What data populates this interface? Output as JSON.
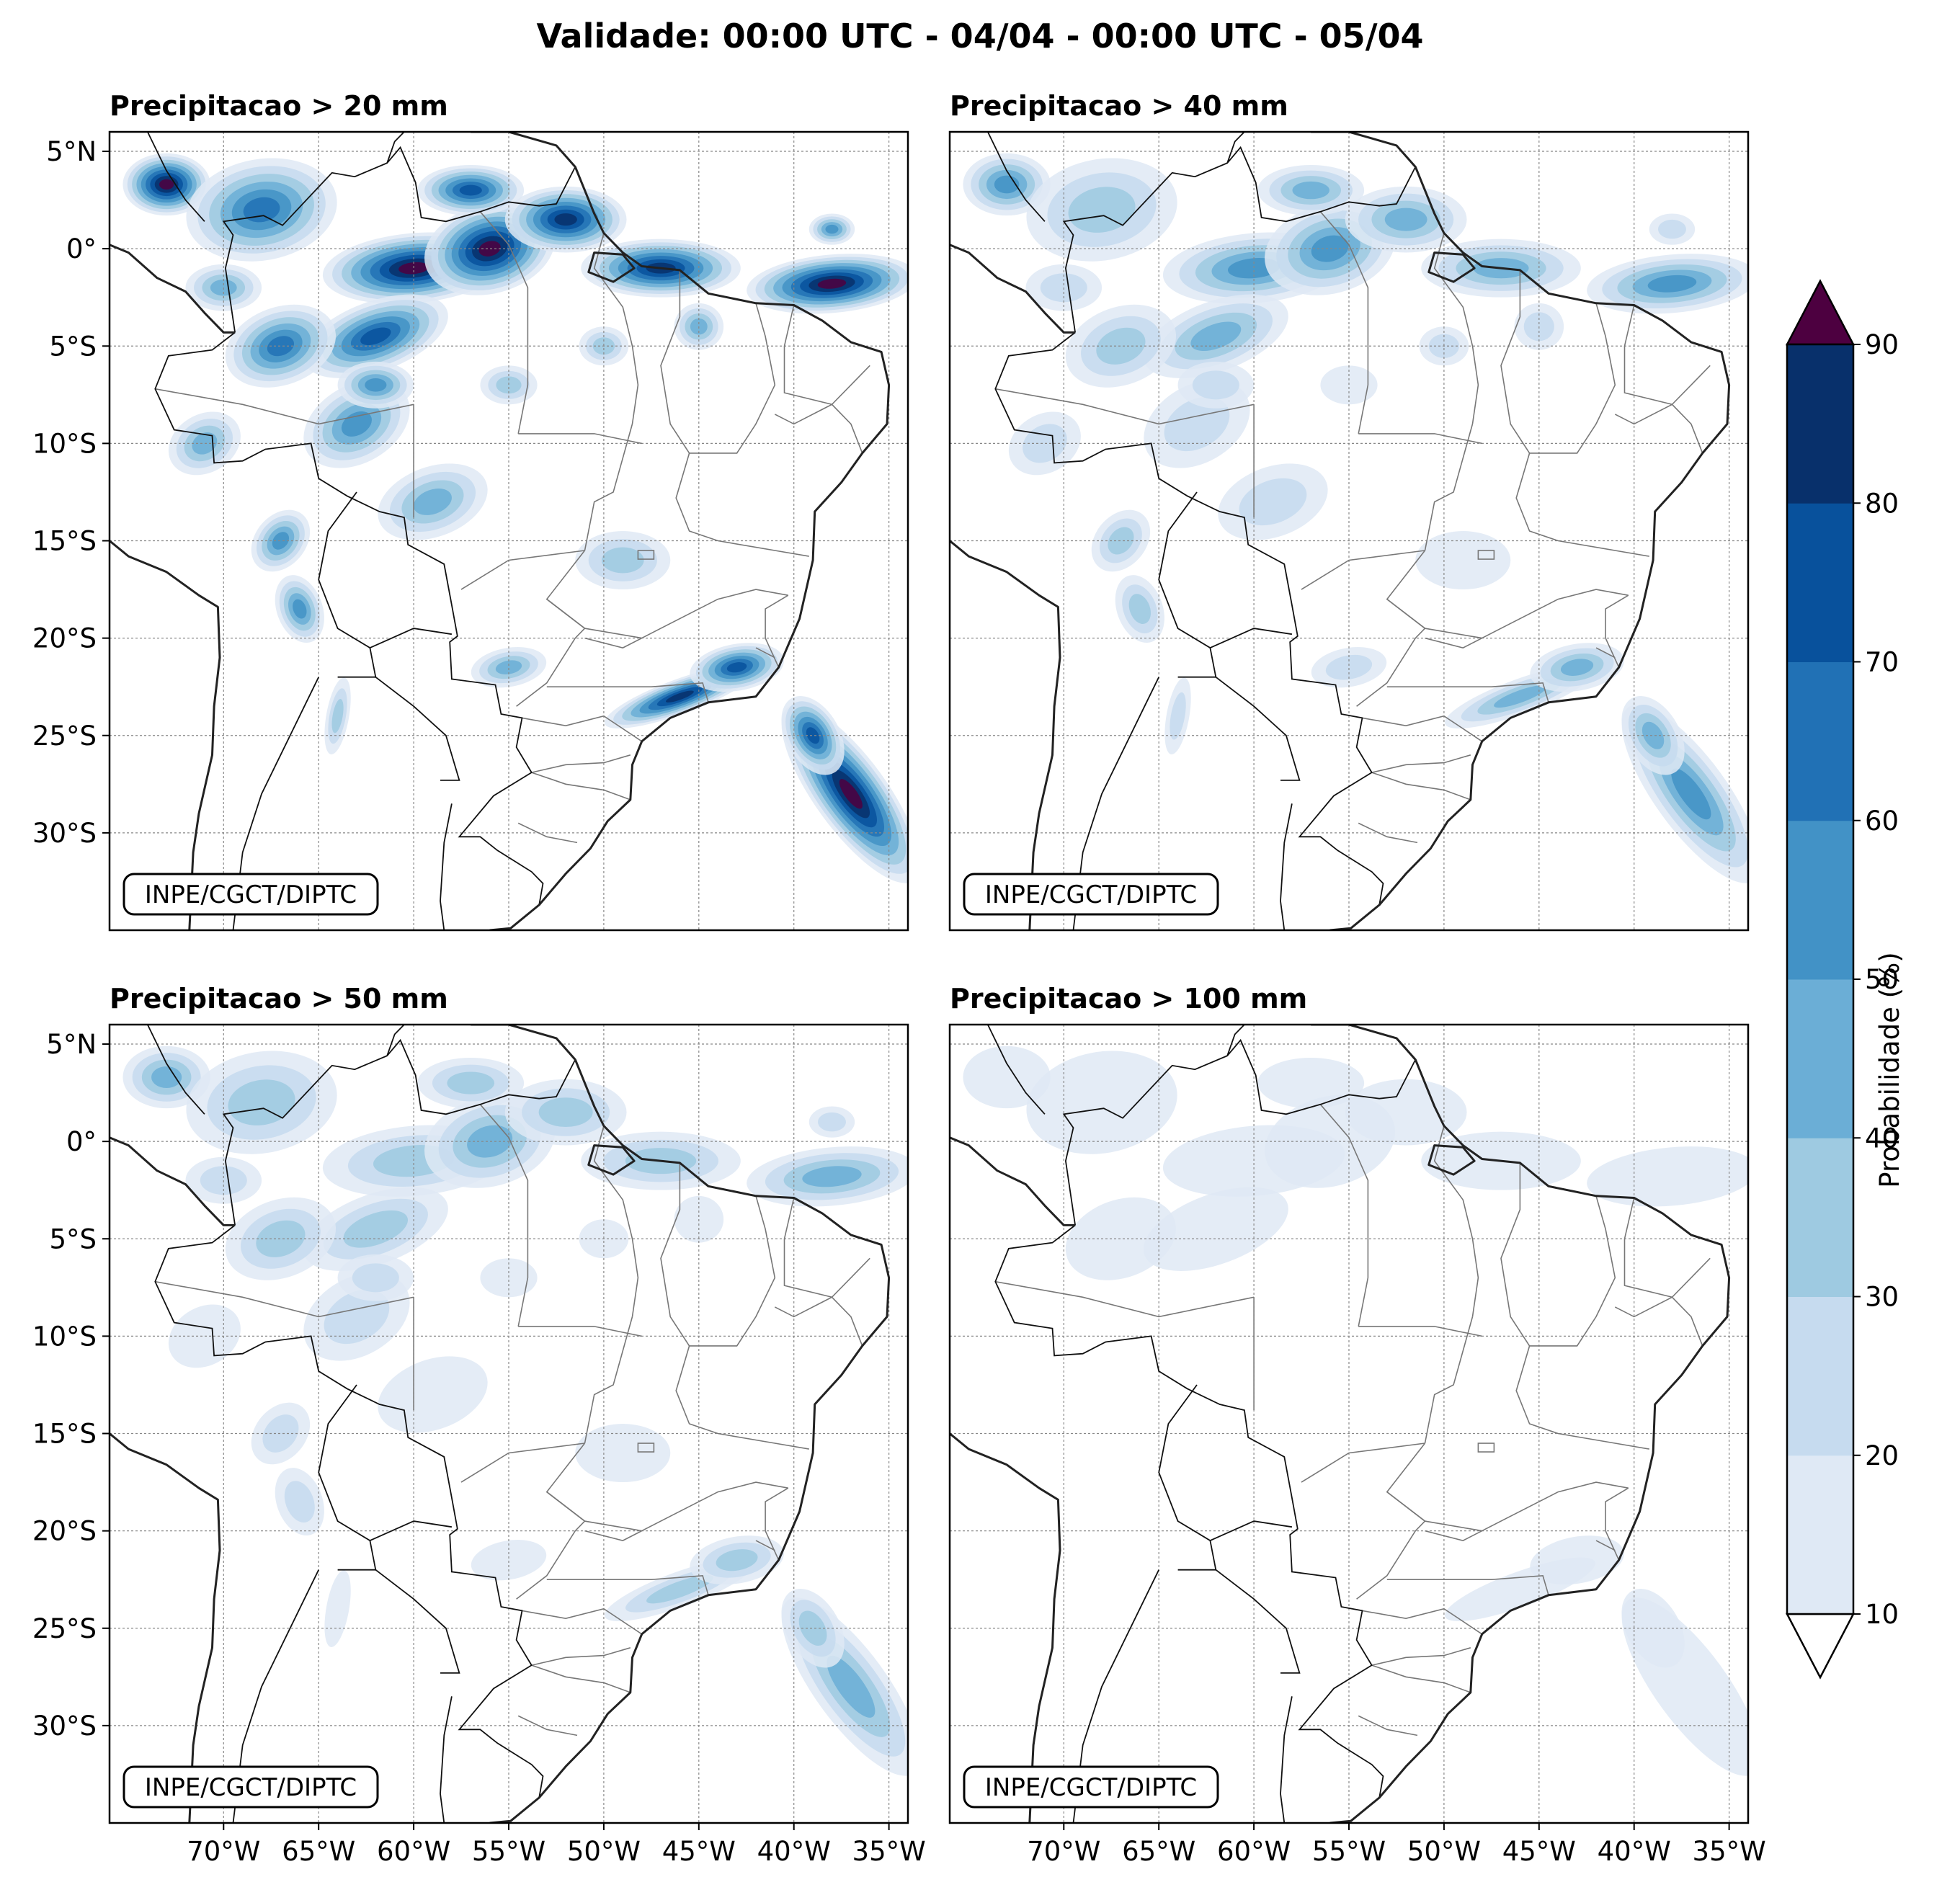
{
  "figure": {
    "title": "Validade: 00:00 UTC - 04/04 - 00:00 UTC - 05/04",
    "watermark": "INPE/CGCT/DIPTC"
  },
  "axes": {
    "lat_labels": [
      "5°N",
      "0°",
      "5°S",
      "10°S",
      "15°S",
      "20°S",
      "25°S",
      "30°S"
    ],
    "lon_labels": [
      "70°W",
      "65°W",
      "60°W",
      "55°W",
      "50°W",
      "45°W",
      "40°W",
      "35°W"
    ],
    "lon_range": [
      -76,
      -34
    ],
    "lat_range": [
      -35,
      6
    ]
  },
  "panels": [
    {
      "title": "Precipitacao > 20 mm",
      "intensity": 1.0
    },
    {
      "title": "Precipitacao > 40 mm",
      "intensity": 0.55
    },
    {
      "title": "Precipitacao > 50 mm",
      "intensity": 0.4
    },
    {
      "title": "Precipitacao > 100 mm",
      "intensity": 0.12
    }
  ],
  "colorbar": {
    "label": "Probabilidade (%)",
    "ticks": [
      "10",
      "20",
      "30",
      "40",
      "50",
      "60",
      "70",
      "80",
      "90"
    ],
    "colors": [
      "#dfe9f5",
      "#c6dbef",
      "#9ecae1",
      "#6baed6",
      "#4292c6",
      "#2171b5",
      "#08519c",
      "#08306b"
    ],
    "over_color": "#4d0040",
    "under_color": "#ffffff"
  }
}
